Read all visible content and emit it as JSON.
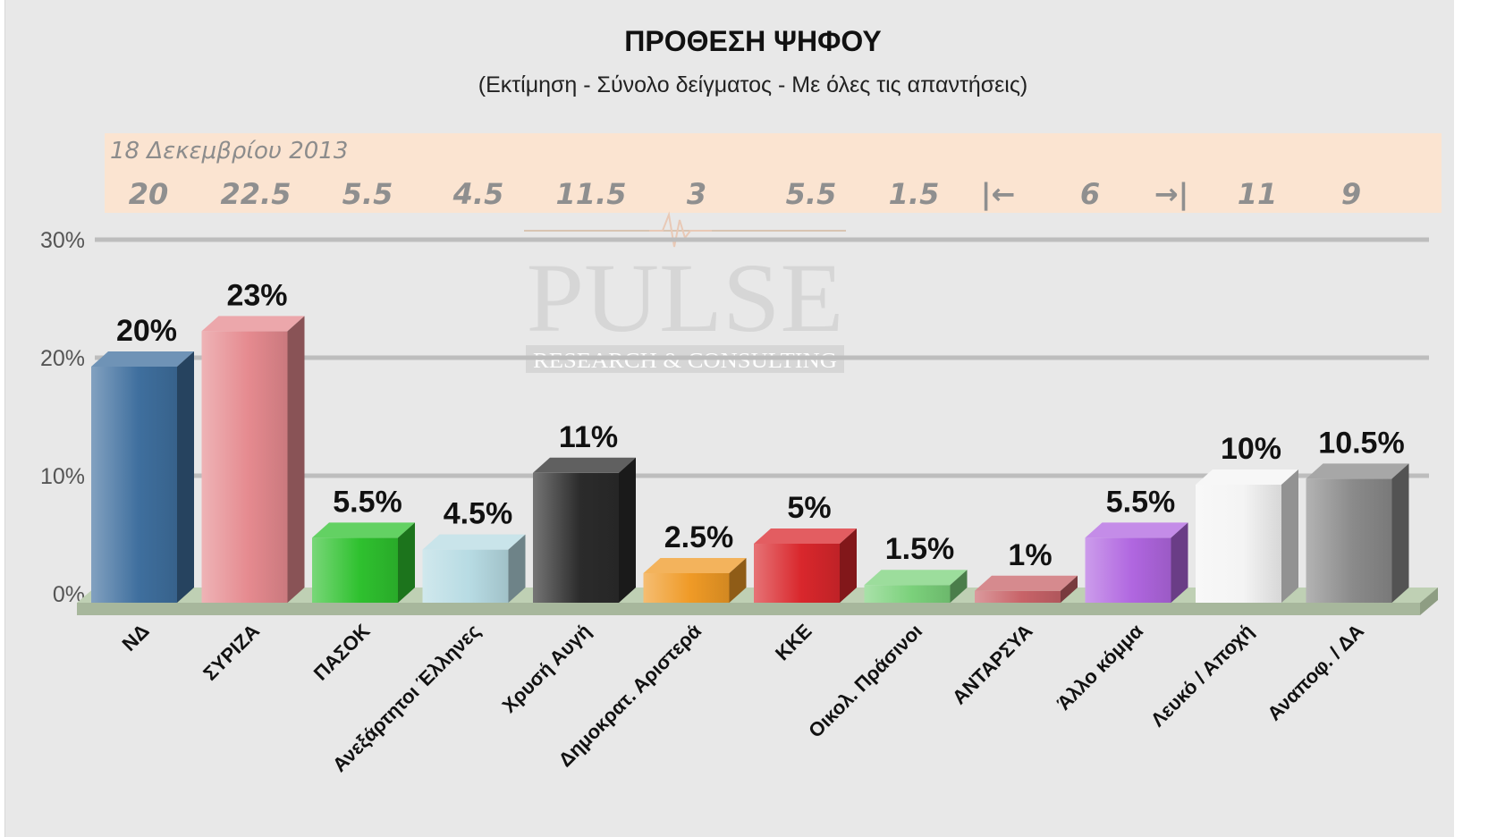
{
  "watermark": {
    "brand": "PULSE",
    "tagline": "RESEARCH & CONSULTING"
  },
  "previous": {
    "date": "18 Δεκεμβρίου 2013",
    "values": [
      "20",
      "22.5",
      "5.5",
      "4.5",
      "11.5",
      "3",
      "5.5",
      "1.5",
      "|←",
      "6",
      "→|",
      "11",
      "9"
    ]
  },
  "chart_data": {
    "type": "bar",
    "title": "ΠΡΟΘΕΣΗ ΨΗΦΟΥ",
    "subtitle": "(Εκτίμηση - Σύνολο δείγματος - Με όλες τις απαντήσεις)",
    "categories": [
      "ΝΔ",
      "ΣΥΡΙΖΑ",
      "ΠΑΣΟΚ",
      "Ανεξάρτητοι Έλληνες",
      "Χρυσή Αυγή",
      "Δημοκρατ. Αριστερά",
      "ΚΚΕ",
      "Οικολ. Πράσινοι",
      "ΑΝΤΑΡΣΥΑ",
      "Άλλο κόμμα",
      "Λευκό / Αποχή",
      "Αναποφ. / ΔΑ"
    ],
    "values": [
      20,
      23,
      5.5,
      4.5,
      11,
      2.5,
      5,
      1.5,
      1,
      5.5,
      10,
      10.5
    ],
    "value_labels": [
      "20%",
      "23%",
      "5.5%",
      "4.5%",
      "11%",
      "2.5%",
      "5%",
      "1.5%",
      "1%",
      "5.5%",
      "10%",
      "10.5%"
    ],
    "colors": [
      "#3f6f9e",
      "#e58a8f",
      "#2fc12f",
      "#b7dbe3",
      "#2b2b2b",
      "#ef9a26",
      "#d9272c",
      "#7bd17b",
      "#c86368",
      "#b066e0",
      "#f4f4f4",
      "#8a8a8a"
    ],
    "ylim": [
      0,
      30
    ],
    "yticks": [
      0,
      10,
      20,
      30
    ],
    "ytick_labels": [
      "0%",
      "10%",
      "20%",
      "30%"
    ],
    "grid": true,
    "legend": "none",
    "xlabel": "",
    "ylabel": ""
  }
}
